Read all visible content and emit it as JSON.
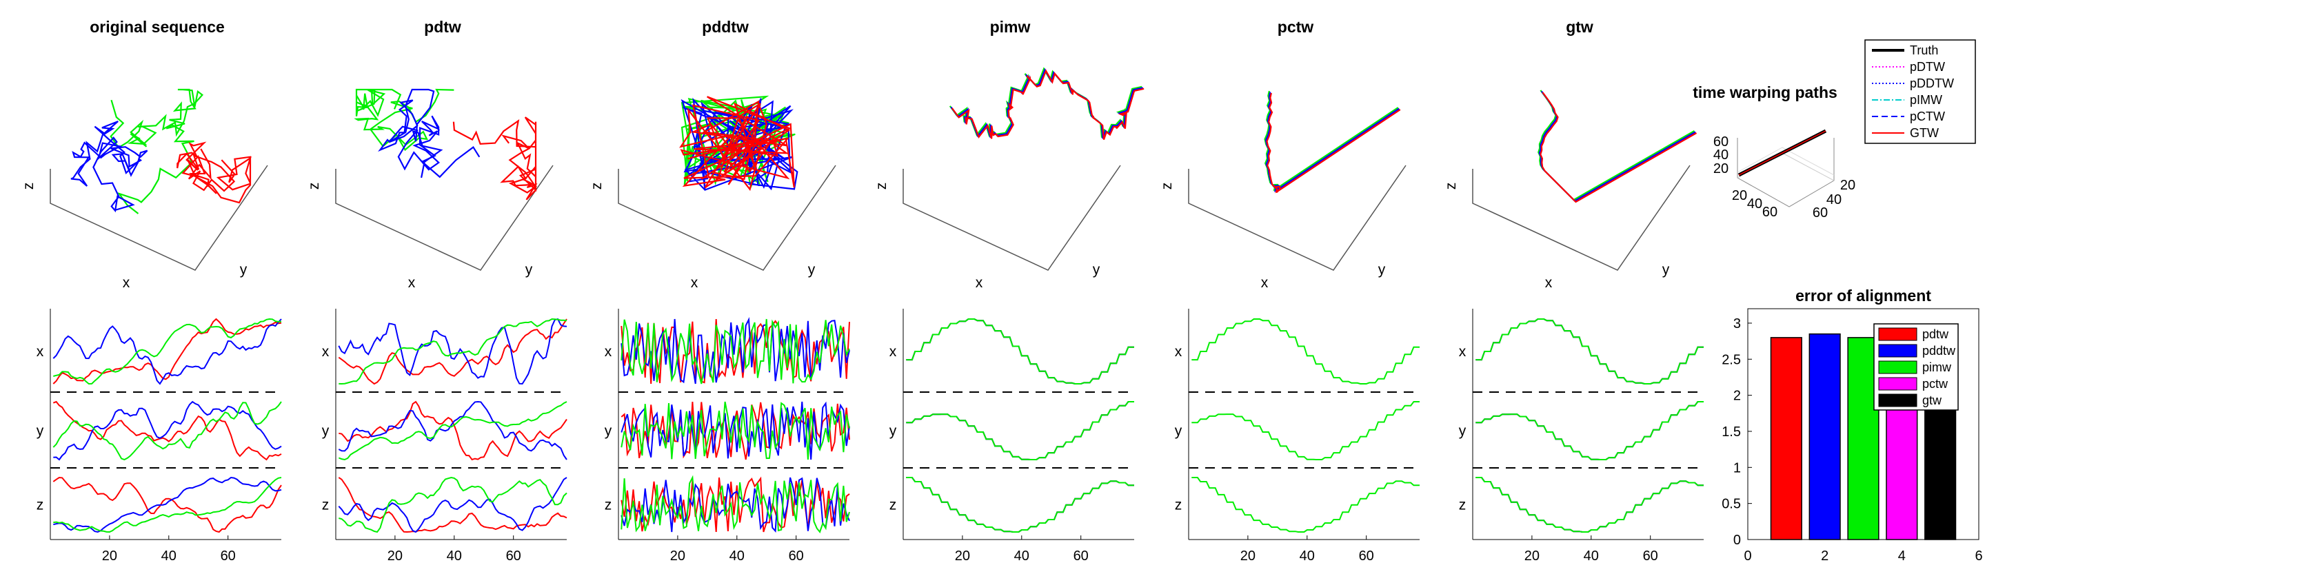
{
  "chart_data": [
    {
      "type": "line",
      "panel": "3d",
      "title": "original sequence",
      "xlabel": "x",
      "ylabel": "y",
      "zlabel": "z",
      "series": [
        {
          "name": "",
          "color": "#00ee00"
        },
        {
          "name": "",
          "color": "#0000ff"
        },
        {
          "name": "",
          "color": "#ff0000"
        }
      ]
    },
    {
      "type": "line",
      "panel": "3d",
      "title": "pdtw",
      "xlabel": "x",
      "ylabel": "y",
      "zlabel": "z",
      "series": [
        {
          "name": "",
          "color": "#00ee00"
        },
        {
          "name": "",
          "color": "#0000ff"
        },
        {
          "name": "",
          "color": "#ff0000"
        }
      ]
    },
    {
      "type": "line",
      "panel": "3d",
      "title": "pddtw",
      "xlabel": "x",
      "ylabel": "y",
      "zlabel": "z",
      "series": [
        {
          "name": "",
          "color": "#00ee00"
        },
        {
          "name": "",
          "color": "#0000ff"
        },
        {
          "name": "",
          "color": "#ff0000"
        }
      ]
    },
    {
      "type": "line",
      "panel": "3d",
      "title": "pimw",
      "xlabel": "x",
      "ylabel": "y",
      "zlabel": "z",
      "series": [
        {
          "name": "",
          "color": "#00ee00"
        },
        {
          "name": "",
          "color": "#0000ff"
        },
        {
          "name": "",
          "color": "#ff0000"
        }
      ]
    },
    {
      "type": "line",
      "panel": "3d",
      "title": "pctw",
      "xlabel": "x",
      "ylabel": "y",
      "zlabel": "z",
      "series": [
        {
          "name": "",
          "color": "#00ee00"
        },
        {
          "name": "",
          "color": "#0000ff"
        },
        {
          "name": "",
          "color": "#ff0000"
        }
      ]
    },
    {
      "type": "line",
      "panel": "3d",
      "title": "gtw",
      "xlabel": "x",
      "ylabel": "y",
      "zlabel": "z",
      "series": [
        {
          "name": "",
          "color": "#00ee00"
        },
        {
          "name": "",
          "color": "#0000ff"
        },
        {
          "name": "",
          "color": "#ff0000"
        }
      ]
    },
    {
      "type": "line",
      "panel": "3d-paths",
      "title": "time warping paths",
      "axis_ticks": {
        "z": [
          "20",
          "40",
          "60"
        ],
        "x": [
          "20",
          "40",
          "60"
        ],
        "y": [
          "20",
          "40",
          "60"
        ]
      },
      "legend": {
        "placement": "top-right",
        "entries": [
          {
            "label": "Truth",
            "color": "#000000",
            "style": "solid"
          },
          {
            "label": "pDTW",
            "color": "#ff00ff",
            "style": "dotted"
          },
          {
            "label": "pDDTW",
            "color": "#0000ff",
            "style": "dotted"
          },
          {
            "label": "pIMW",
            "color": "#00cccc",
            "style": "dashdot"
          },
          {
            "label": "pCTW",
            "color": "#0000ff",
            "style": "dashed"
          },
          {
            "label": "GTW",
            "color": "#ff0000",
            "style": "solid"
          }
        ]
      }
    },
    {
      "type": "line",
      "panel": "time",
      "row_labels": [
        "x",
        "y",
        "z"
      ],
      "xlim": [
        0,
        78
      ],
      "x_ticks": [
        "20",
        "40",
        "60"
      ],
      "variant": "raw"
    },
    {
      "type": "line",
      "panel": "time",
      "row_labels": [
        "x",
        "y",
        "z"
      ],
      "xlim": [
        0,
        78
      ],
      "x_ticks": [
        "20",
        "40",
        "60"
      ],
      "variant": "raw"
    },
    {
      "type": "line",
      "panel": "time",
      "row_labels": [
        "x",
        "y",
        "z"
      ],
      "xlim": [
        0,
        78
      ],
      "x_ticks": [
        "20",
        "40",
        "60"
      ],
      "variant": "noisy"
    },
    {
      "type": "line",
      "panel": "time",
      "row_labels": [
        "x",
        "y",
        "z"
      ],
      "xlim": [
        0,
        78
      ],
      "x_ticks": [
        "20",
        "40",
        "60"
      ],
      "variant": "aligned"
    },
    {
      "type": "line",
      "panel": "time",
      "row_labels": [
        "x",
        "y",
        "z"
      ],
      "xlim": [
        0,
        78
      ],
      "x_ticks": [
        "20",
        "40",
        "60"
      ],
      "variant": "single"
    },
    {
      "type": "line",
      "panel": "time",
      "row_labels": [
        "x",
        "y",
        "z"
      ],
      "xlim": [
        0,
        78
      ],
      "x_ticks": [
        "20",
        "40",
        "60"
      ],
      "variant": "aligned"
    },
    {
      "type": "bar",
      "title": "error of alignment",
      "categories": [
        "1",
        "2",
        "3",
        "4",
        "5"
      ],
      "series": [
        {
          "name": "",
          "values": [
            2.8,
            2.85,
            2.8,
            2.8,
            2.8
          ]
        }
      ],
      "bar_colors": [
        "#ff0000",
        "#0000ff",
        "#00ee00",
        "#ff00ff",
        "#000000"
      ],
      "xlim": [
        0,
        6
      ],
      "ylim": [
        0,
        3.2
      ],
      "x_ticks": [
        "0",
        "2",
        "4",
        "6"
      ],
      "y_ticks": [
        "0",
        "0.5",
        "1",
        "1.5",
        "2",
        "2.5",
        "3"
      ],
      "legend": {
        "placement": "top-right",
        "entries": [
          {
            "label": "pdtw",
            "color": "#ff0000"
          },
          {
            "label": "pddtw",
            "color": "#0000ff"
          },
          {
            "label": "pimw",
            "color": "#00ee00"
          },
          {
            "label": "pctw",
            "color": "#ff00ff"
          },
          {
            "label": "gtw",
            "color": "#000000"
          }
        ]
      }
    }
  ]
}
